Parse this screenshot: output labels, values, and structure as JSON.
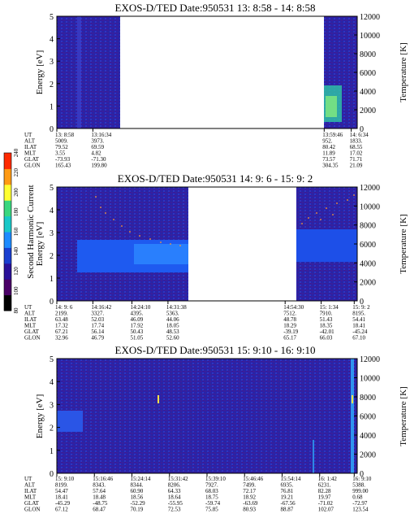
{
  "colorbar": {
    "label": "Second Harmonic Current",
    "ticks": [
      80,
      100,
      120,
      140,
      160,
      180,
      200,
      220,
      240
    ],
    "colors": [
      "#000000",
      "#4a0066",
      "#2a1199",
      "#1a3fd0",
      "#1e8bff",
      "#19c8c8",
      "#3ad77f",
      "#ffff33",
      "#ff9a14",
      "#ff2a00"
    ]
  },
  "chart_data": [
    {
      "type": "heatmap",
      "title": "EXOS-D/TED   Date:950531  13: 8:58 - 14: 8:58",
      "ylabel": "Energy [eV]",
      "y2label": "Temperature [K]",
      "ylim": [
        0,
        5
      ],
      "y2lim": [
        0,
        12000
      ],
      "yticks": [
        "0",
        "1",
        "2",
        "3",
        "4",
        "5"
      ],
      "y2ticks": [
        "0",
        "2000",
        "4000",
        "6000",
        "8000",
        "10000",
        "12000"
      ],
      "data_gaps": [
        [
          0.17,
          0.89
        ]
      ],
      "eph_labels": [
        "UT",
        "ALT",
        "ILAT",
        "MLT",
        "GLAT",
        "GLON"
      ],
      "eph_columns": [
        {
          "x": 0.0,
          "values": [
            "13: 8:58",
            "5009.",
            "79.52",
            "3.55",
            "-73.93",
            "165.43"
          ]
        },
        {
          "x": 0.12,
          "values": [
            "13:16:34",
            "3973.",
            "69.59",
            "4.82",
            "-71.30",
            "199.80"
          ]
        },
        {
          "x": 0.89,
          "values": [
            "13:59:46",
            "952.",
            "80.42",
            "11.89",
            "73.57",
            "304.35"
          ]
        },
        {
          "x": 0.98,
          "values": [
            "14: 6:34",
            "1833.",
            "68.55",
            "17.02",
            "71.71",
            "21.09"
          ]
        }
      ]
    },
    {
      "type": "heatmap",
      "title": "EXOS-D/TED   Date:950531  14: 9: 6 - 15: 9: 2",
      "ylabel": "Energy [eV]",
      "y2label": "Temperature [K]",
      "ylim": [
        0,
        5
      ],
      "y2lim": [
        0,
        12000
      ],
      "yticks": [
        "0",
        "1",
        "2",
        "3",
        "4",
        "5"
      ],
      "y2ticks": [
        "0",
        "2000",
        "4000",
        "6000",
        "8000",
        "10000",
        "12000"
      ],
      "data_gaps": [
        [
          0.47,
          0.76
        ]
      ],
      "eph_labels": [
        "UT",
        "ALT",
        "ILAT",
        "MLT",
        "GLAT",
        "GLON"
      ],
      "eph_columns": [
        {
          "x": 0.0,
          "values": [
            "14: 9: 6",
            "2199.",
            "63.48",
            "17.32",
            "67.21",
            "32.96"
          ]
        },
        {
          "x": 0.12,
          "values": [
            "14:16:42",
            "3327.",
            "52.03",
            "17.74",
            "56.14",
            "46.79"
          ]
        },
        {
          "x": 0.25,
          "values": [
            "14:24:10",
            "4395.",
            "46.09",
            "17.92",
            "50.43",
            "51.05"
          ]
        },
        {
          "x": 0.37,
          "values": [
            "14:31:38",
            "5363.",
            "44.06",
            "18.05",
            "48.53",
            "52.60"
          ]
        },
        {
          "x": 0.76,
          "values": [
            "14:54:30",
            "7512.",
            "48.78",
            "18.29",
            "-39.19",
            "65.17"
          ]
        },
        {
          "x": 0.88,
          "values": [
            "15: 1:34",
            "7910.",
            "51.43",
            "18.35",
            "-42.01",
            "66.03"
          ]
        },
        {
          "x": 0.99,
          "values": [
            "15: 9: 2",
            "8195.",
            "54.41",
            "18.41",
            "-45.24",
            "67.10"
          ]
        }
      ]
    },
    {
      "type": "heatmap",
      "title": "EXOS-D/TED   Date:950531  15: 9:10 - 16: 9:10",
      "ylabel": "Energy [eV]",
      "y2label": "Temperature [K]",
      "ylim": [
        0,
        5
      ],
      "y2lim": [
        0,
        12000
      ],
      "yticks": [
        "0",
        "1",
        "2",
        "3",
        "4",
        "5"
      ],
      "y2ticks": [
        "0",
        "2000",
        "4000",
        "6000",
        "8000",
        "10000",
        "12000"
      ],
      "data_gaps": [],
      "eph_labels": [
        "UT",
        "ALT",
        "ILAT",
        "MLT",
        "GLAT",
        "GLON"
      ],
      "eph_columns": [
        {
          "x": 0.0,
          "values": [
            "15: 9:10",
            "8199.",
            "54.47",
            "18.41",
            "-45.29",
            "67.12"
          ]
        },
        {
          "x": 0.125,
          "values": [
            "15:16:46",
            "8343.",
            "57.64",
            "18.48",
            "-48.75",
            "68.47"
          ]
        },
        {
          "x": 0.25,
          "values": [
            "15:24:14",
            "8344.",
            "60.90",
            "18.56",
            "-52.29",
            "70.19"
          ]
        },
        {
          "x": 0.375,
          "values": [
            "15:31:42",
            "8206.",
            "64.33",
            "18.64",
            "-55.95",
            "72.53"
          ]
        },
        {
          "x": 0.5,
          "values": [
            "15:39:10",
            "7927.",
            "68.03",
            "18.75",
            "-59.74",
            "75.85"
          ]
        },
        {
          "x": 0.625,
          "values": [
            "15:46:46",
            "7499.",
            "72.17",
            "18.92",
            "-63.69",
            "80.93"
          ]
        },
        {
          "x": 0.75,
          "values": [
            "15:54:14",
            "6935.",
            "76.81",
            "19.21",
            "-67.56",
            "88.87"
          ]
        },
        {
          "x": 0.875,
          "values": [
            "16: 1:42",
            "6231.",
            "82.28",
            "19.97",
            "-71.02",
            "102.07"
          ]
        },
        {
          "x": 0.99,
          "values": [
            "16: 9:10",
            "5388.",
            "999.00",
            "0.68",
            "-72.97",
            "123.54"
          ]
        }
      ]
    }
  ]
}
